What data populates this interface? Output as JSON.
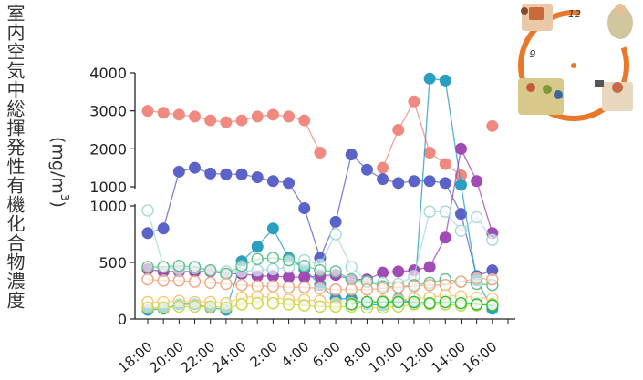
{
  "chart_data": {
    "type": "line",
    "ylabel": "室内空気中総揮発性有機化合物濃度",
    "ylabel_unit": "(mg/m3)",
    "x_tick_labels": [
      "18:00",
      "20:00",
      "22:00",
      "24:00",
      "2:00",
      "4:00",
      "6:00",
      "8:00",
      "10:00",
      "12:00",
      "14:00",
      "16:00"
    ],
    "x_tick_hours": [
      18,
      20,
      22,
      24,
      26,
      28,
      30,
      32,
      34,
      36,
      38,
      40
    ],
    "x": [
      18,
      19,
      20,
      21,
      22,
      23,
      24,
      25,
      26,
      27,
      28,
      29,
      30,
      31,
      32,
      33,
      34,
      35,
      36,
      37,
      38,
      39,
      40,
      41
    ],
    "upper_axis": {
      "range": [
        1000,
        4000
      ],
      "ticks": [
        1000,
        2000,
        3000,
        4000
      ],
      "tick_labels": [
        "1000",
        "2000",
        "3000",
        "4000"
      ]
    },
    "lower_axis": {
      "range": [
        0,
        1000
      ],
      "ticks": [
        0,
        500,
        1000
      ],
      "tick_labels": [
        "0",
        "500",
        "1000"
      ]
    },
    "series": [
      {
        "color": "#f08a80",
        "filled": true,
        "values": [
          3000,
          2950,
          2900,
          2850,
          2750,
          2700,
          2750,
          2850,
          2900,
          2850,
          2750,
          1900,
          null,
          null,
          null,
          1500,
          2500,
          3250,
          1900,
          1600,
          1300,
          null,
          2600,
          null
        ]
      },
      {
        "color": "#5b63c8",
        "filled": true,
        "values": [
          760,
          800,
          1400,
          1500,
          1350,
          1330,
          1330,
          1250,
          1150,
          1100,
          980,
          540,
          860,
          1850,
          1450,
          1200,
          1100,
          1150,
          1150,
          1100,
          930,
          380,
          430,
          null
        ]
      },
      {
        "color": "#2a9fc2",
        "filled": true,
        "values": [
          80,
          90,
          130,
          130,
          100,
          80,
          510,
          640,
          800,
          540,
          440,
          300,
          180,
          180,
          130,
          120,
          180,
          140,
          3850,
          3800,
          1050,
          340,
          90,
          null
        ]
      },
      {
        "color": "#a14bb5",
        "filled": true,
        "values": [
          440,
          420,
          420,
          420,
          420,
          400,
          400,
          380,
          380,
          370,
          370,
          380,
          390,
          350,
          350,
          410,
          420,
          430,
          460,
          720,
          2000,
          1150,
          760,
          null
        ]
      },
      {
        "color": "#a8d8d8",
        "filled": false,
        "values": [
          960,
          460,
          440,
          450,
          430,
          420,
          420,
          430,
          440,
          460,
          520,
          480,
          750,
          460,
          330,
          320,
          310,
          380,
          950,
          950,
          780,
          900,
          700,
          null
        ]
      },
      {
        "color": "#5cc28a",
        "filled": false,
        "values": [
          460,
          460,
          470,
          460,
          430,
          400,
          470,
          530,
          540,
          520,
          470,
          430,
          420,
          350,
          330,
          290,
          280,
          300,
          320,
          350,
          330,
          310,
          300,
          null
        ]
      },
      {
        "color": "#f0a880",
        "filled": false,
        "values": [
          350,
          340,
          340,
          330,
          320,
          310,
          300,
          290,
          290,
          280,
          280,
          270,
          260,
          260,
          260,
          270,
          280,
          290,
          300,
          300,
          330,
          360,
          350,
          null
        ]
      },
      {
        "color": "#f4c870",
        "filled": false,
        "values": [
          150,
          150,
          160,
          150,
          150,
          140,
          190,
          200,
          190,
          170,
          170,
          160,
          140,
          140,
          150,
          160,
          170,
          180,
          190,
          210,
          200,
          190,
          180,
          null
        ]
      },
      {
        "color": "#c8d840",
        "filled": false,
        "values": [
          100,
          100,
          110,
          110,
          110,
          100,
          130,
          140,
          140,
          130,
          120,
          110,
          110,
          110,
          100,
          100,
          110,
          130,
          130,
          130,
          120,
          120,
          130,
          null
        ]
      },
      {
        "color": "#22c040",
        "filled": false,
        "values": [
          null,
          null,
          null,
          null,
          null,
          null,
          null,
          null,
          null,
          null,
          null,
          null,
          null,
          130,
          150,
          150,
          150,
          150,
          140,
          150,
          140,
          130,
          120,
          null
        ]
      }
    ]
  },
  "inset": {
    "label_12": "12",
    "label_9": "9"
  }
}
